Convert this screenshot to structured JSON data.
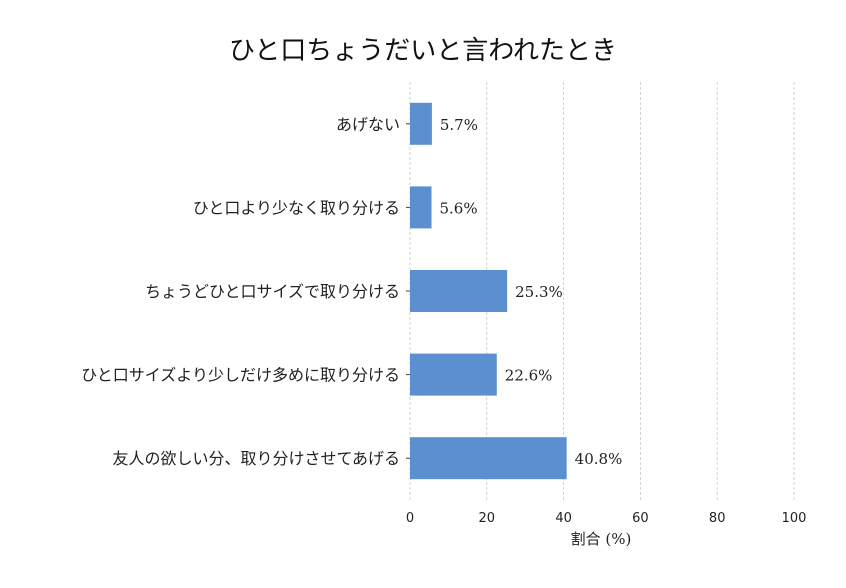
{
  "chart_data": {
    "type": "bar",
    "orientation": "horizontal",
    "title": "ひと口ちょうだいと言われたとき",
    "xlabel": "割合 (%)",
    "ylabel": "",
    "xlim": [
      0,
      100
    ],
    "xticks": [
      "0",
      "20",
      "40",
      "60",
      "80",
      "100"
    ],
    "grid": "vertical dashed",
    "bar_color": "#5b8fd0",
    "categories": [
      "あげない",
      "ひと口より少なく取り分ける",
      "ちょうどひと口サイズで取り分ける",
      "ひと口サイズより少しだけ多めに取り分ける",
      "友人の欲しい分、取り分けさせてあげる"
    ],
    "values": [
      5.7,
      5.6,
      25.3,
      22.6,
      40.8
    ],
    "value_labels": [
      "5.7%",
      "5.6%",
      "25.3%",
      "22.6%",
      "40.8%"
    ]
  }
}
